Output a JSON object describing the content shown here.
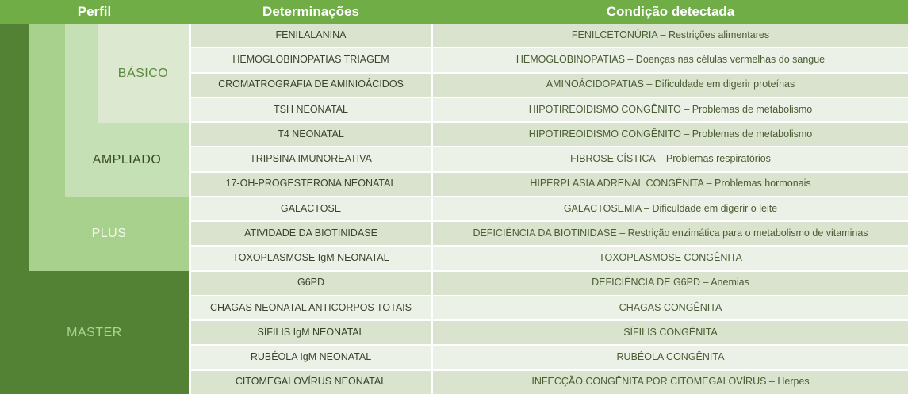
{
  "header": {
    "perfil": "Perfil",
    "determinacoes": "Determinações",
    "condicao": "Condição detectada"
  },
  "profiles": [
    {
      "label": "BÁSICO",
      "row_span": 4
    },
    {
      "label": "AMPLIADO",
      "row_span": 3
    },
    {
      "label": "PLUS",
      "row_span": 3
    },
    {
      "label": "MASTER",
      "row_span": 5
    }
  ],
  "rows": [
    {
      "det": "FENILALANINA",
      "cond": "FENILCETONÚRIA – Restrições alimentares"
    },
    {
      "det": "HEMOGLOBINOPATIAS TRIAGEM",
      "cond": "HEMOGLOBINOPATIAS – Doenças nas células vermelhas do sangue"
    },
    {
      "det": "CROMATROGRAFIA DE AMINIOÁCIDOS",
      "cond": "AMINOÁCIDOPATIAS – Dificuldade em digerir proteínas"
    },
    {
      "det": "TSH NEONATAL",
      "cond": "HIPOTIREOIDISMO CONGÊNITO – Problemas de metabolismo"
    },
    {
      "det": "T4 NEONATAL",
      "cond": "HIPOTIREOIDISMO CONGÊNITO – Problemas de metabolismo"
    },
    {
      "det": "TRIPSINA IMUNOREATIVA",
      "cond": "FIBROSE CÍSTICA – Problemas respiratórios"
    },
    {
      "det": "17-OH-PROGESTERONA NEONATAL",
      "cond": "HIPERPLASIA ADRENAL CONGÊNITA – Problemas hormonais"
    },
    {
      "det": "GALACTOSE",
      "cond": "GALACTOSEMIA – Dificuldade em digerir o leite"
    },
    {
      "det": "ATIVIDADE DA BIOTINIDASE",
      "cond": "DEFICIÊNCIA DA BIOTINIDASE – Restrição enzimática para o metabolismo de vitaminas"
    },
    {
      "det": "TOXOPLASMOSE IgM NEONATAL",
      "cond": "TOXOPLASMOSE CONGÊNITA"
    },
    {
      "det": "G6PD",
      "cond": "DEFICIÊNCIA DE G6PD – Anemias"
    },
    {
      "det": "CHAGAS NEONATAL ANTICORPOS TOTAIS",
      "cond": "CHAGAS CONGÊNITA"
    },
    {
      "det": "SÍFILIS IgM NEONATAL",
      "cond": "SÍFILIS CONGÊNITA"
    },
    {
      "det": "RUBÉOLA IgM NEONATAL",
      "cond": "RUBÉOLA CONGÊNITA"
    },
    {
      "det": "CITOMEGALOVÍRUS NEONATAL",
      "cond": "INFECÇÃO CONGÊNITA POR CITOMEGALOVÍRUS – Herpes"
    }
  ],
  "colors": {
    "header_bg": "#70AD47",
    "header_text": "#FFFFFF",
    "master_bg": "#548235",
    "master_text": "#AED491",
    "plus_bg": "#A9D18E",
    "plus_text": "#F2F8EC",
    "ampliado_bg": "#C5E0B4",
    "ampliado_text": "#3B4A26",
    "basico_bg": "#DDE8D0",
    "basico_text": "#5A8B3C",
    "row_band_dark": "#D9E3CD",
    "row_band_light": "#ECF1E7"
  }
}
